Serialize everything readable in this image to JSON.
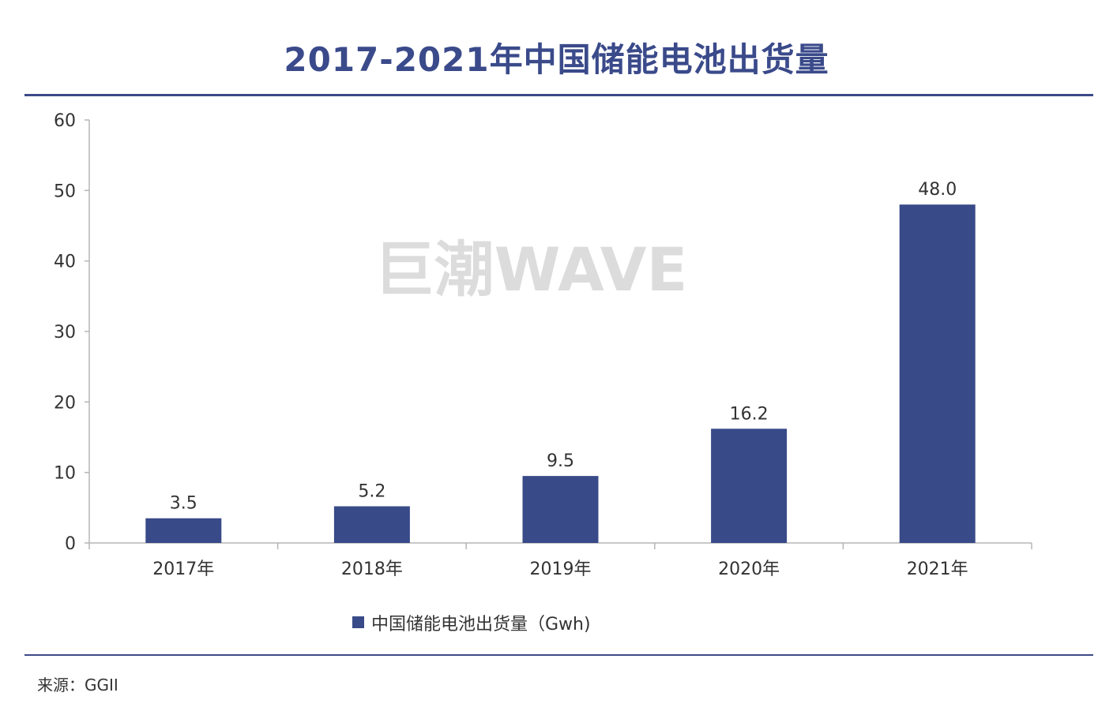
{
  "title": "2017-2021年中国储能电池出货量",
  "watermark": "巨潮WAVE",
  "source": {
    "text": "来源：GGII"
  },
  "colors": {
    "bar": "#384a88",
    "title": "#3a4a8a",
    "axis": "#b5b5b5",
    "rule": "#3c4a86",
    "watermark": "#dcdcdc"
  },
  "chart_data": {
    "type": "bar",
    "title": "2017-2021年中国储能电池出货量",
    "categories": [
      "2017年",
      "2018年",
      "2019年",
      "2020年",
      "2021年"
    ],
    "series": [
      {
        "name": "中国储能电池出货量（Gwh)",
        "values": [
          3.5,
          5.2,
          9.5,
          16.2,
          48.0
        ]
      }
    ],
    "value_labels": [
      "3.5",
      "5.2",
      "9.5",
      "16.2",
      "48.0"
    ],
    "ylim": [
      0,
      60
    ],
    "yticks": [
      0,
      10,
      20,
      30,
      40,
      50,
      60
    ],
    "xlabel": "",
    "ylabel": "",
    "grid": false,
    "legend_position": "bottom-center"
  }
}
